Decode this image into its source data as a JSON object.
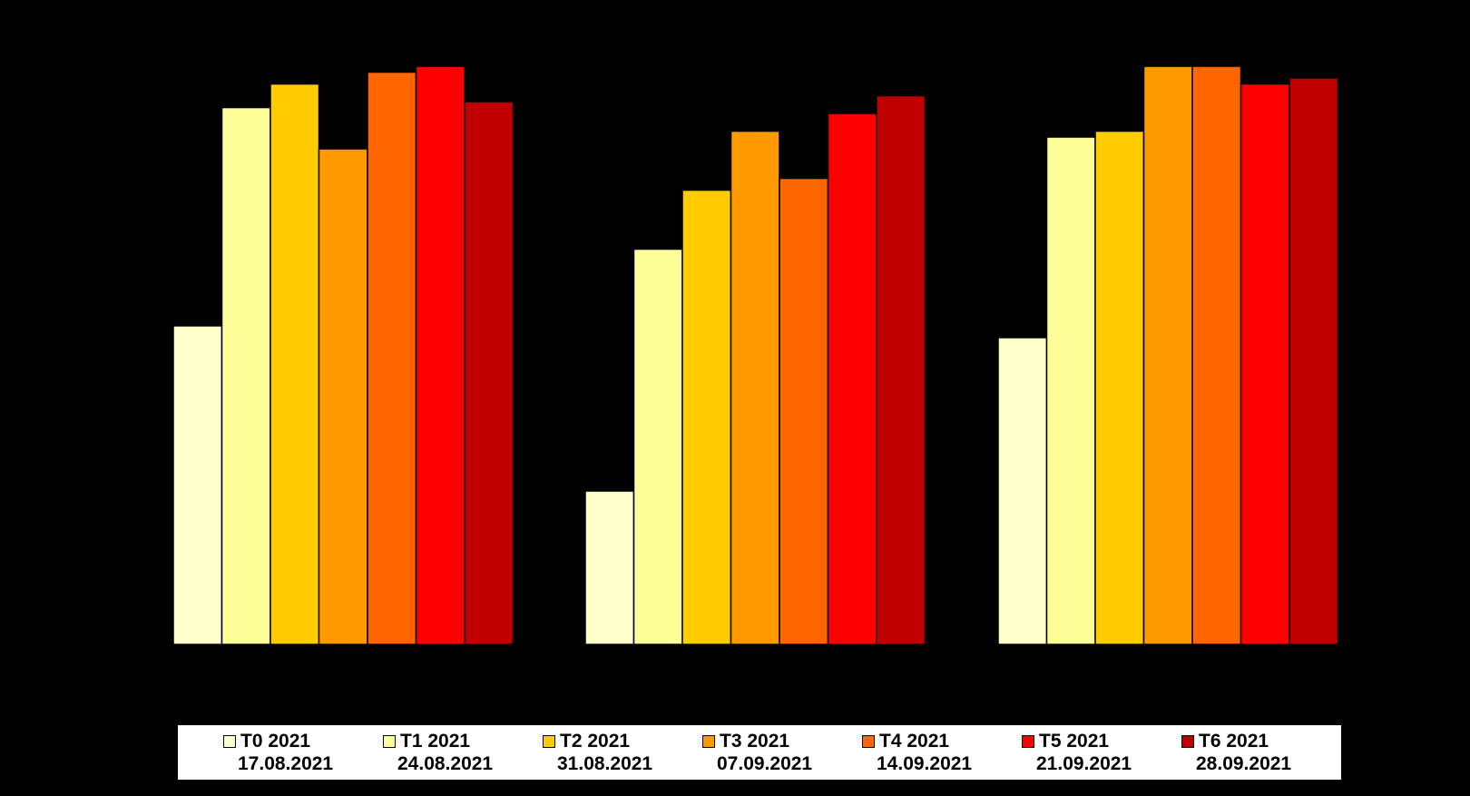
{
  "chart_data": {
    "type": "bar",
    "title": "",
    "xlabel": "",
    "ylabel": "",
    "ylim": [
      0,
      100
    ],
    "grid": false,
    "legend_position": "bottom",
    "categories": [
      "",
      "",
      ""
    ],
    "series": [
      {
        "name": "T0 2021",
        "date": "17.08.2021",
        "color": "#FFFFCC",
        "values": [
          54,
          26,
          52
        ]
      },
      {
        "name": "T1 2021",
        "date": "24.08.2021",
        "color": "#FFFF99",
        "values": [
          91,
          67,
          86
        ]
      },
      {
        "name": "T2 2021",
        "date": "31.08.2021",
        "color": "#FFCC00",
        "values": [
          95,
          77,
          87
        ]
      },
      {
        "name": "T3 2021",
        "date": "07.09.2021",
        "color": "#FF9900",
        "values": [
          84,
          87,
          98
        ]
      },
      {
        "name": "T4 2021",
        "date": "14.09.2021",
        "color": "#FF6600",
        "values": [
          97,
          79,
          98
        ]
      },
      {
        "name": "T5 2021",
        "date": "21.09.2021",
        "color": "#FF0000",
        "values": [
          98,
          90,
          95
        ]
      },
      {
        "name": "T6 2021",
        "date": "28.09.2021",
        "color": "#C00000",
        "values": [
          92,
          93,
          96
        ]
      }
    ]
  }
}
